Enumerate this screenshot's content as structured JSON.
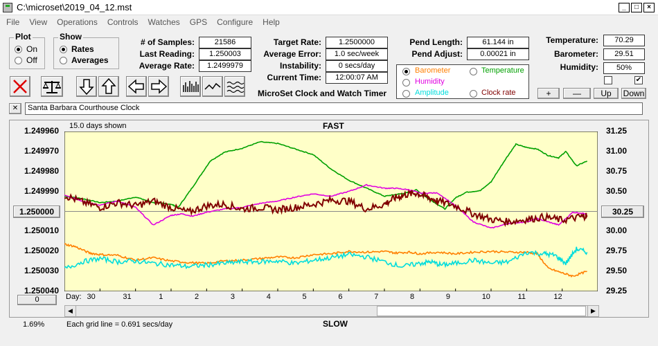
{
  "window": {
    "title": "C:\\microset\\2019_04_12.mst"
  },
  "menu": [
    "File",
    "View",
    "Operations",
    "Controls",
    "Watches",
    "GPS",
    "Configure",
    "Help"
  ],
  "plot": {
    "title": "Plot",
    "on": "On",
    "off": "Off",
    "selected": "On"
  },
  "show": {
    "title": "Show",
    "rates": "Rates",
    "averages": "Averages",
    "selected": "Rates"
  },
  "stats": {
    "samples_label": "# of Samples:",
    "samples": "21586",
    "last_label": "Last Reading:",
    "last": "1.250003",
    "avg_label": "Average Rate:",
    "avg": "1.2499979"
  },
  "rate": {
    "target_label": "Target Rate:",
    "target": "1.2500000",
    "error_label": "Average Error:",
    "error": "1.0 sec/week",
    "instab_label": "Instability:",
    "instab": "0 secs/day",
    "time_label": "Current Time:",
    "time": "12:00:07 AM"
  },
  "pend": {
    "length_label": "Pend Length:",
    "length": "61.144 in",
    "adjust_label": "Pend Adjust:",
    "adjust": "0.00021 in"
  },
  "env": {
    "temp_label": "Temperature:",
    "temp": "70.29",
    "baro_label": "Barometer:",
    "baro": "29.51",
    "hum_label": "Humidity:",
    "hum": "50%"
  },
  "sensor_select": {
    "barometer": "Barometer",
    "temperature": "Temperature",
    "humidity": "Humidity",
    "amplitude": "Amplitude",
    "clock_rate": "Clock rate",
    "selected": "barometer"
  },
  "adjust_buttons": {
    "plus": "+",
    "minus": "—",
    "up": "Up",
    "down": "Down"
  },
  "app_label": "MicroSet Clock and Watch Timer",
  "clock_name": "Santa Barbara Courthouse Clock",
  "close_x": "✕",
  "colors": {
    "barometer": "#ff7f00",
    "temperature": "#00a000",
    "humidity": "#e000e0",
    "amplitude": "#00dcdc",
    "rate": "#800000",
    "plot_bg": "#ffffc8"
  },
  "chart": {
    "days_shown": "15.0 days shown",
    "top_label": "FAST",
    "bottom_label": "SLOW",
    "grid_note": "Each grid line = 0.691 secs/day",
    "percent": "1.69%",
    "center_left_button": "1.250000",
    "center_right_button": "30.25",
    "bottom_left_button": "0",
    "day_label": "Day:"
  },
  "chart_data": {
    "type": "line",
    "left_axis": {
      "ticks": [
        "1.249960",
        "1.249970",
        "1.249980",
        "1.249990",
        "1.250000",
        "1.250010",
        "1.250020",
        "1.250030",
        "1.250040"
      ],
      "range": [
        1.24996,
        1.25004
      ]
    },
    "right_axis": {
      "ticks": [
        "31.25",
        "31.00",
        "30.75",
        "30.50",
        "30.25",
        "30.00",
        "29.75",
        "29.50",
        "29.25"
      ],
      "range": [
        29.25,
        31.25
      ]
    },
    "days": [
      "30",
      "31",
      "1",
      "2",
      "3",
      "4",
      "5",
      "6",
      "7",
      "8",
      "9",
      "10",
      "11",
      "12"
    ],
    "day_positions": [
      0.4,
      1.4,
      2.4,
      3.4,
      4.4,
      5.4,
      6.4,
      7.4,
      8.4,
      9.4,
      10.4,
      11.4,
      12.4,
      13.4
    ],
    "x_range": [
      0,
      15
    ],
    "series": [
      {
        "color": "temperature",
        "x": [
          0,
          0.5,
          1,
          1.5,
          2,
          2.5,
          3,
          3.2,
          3.6,
          4.1,
          4.5,
          5,
          5.5,
          6,
          6.5,
          7,
          7.5,
          8,
          8.5,
          9,
          9.3,
          9.6,
          9.9,
          10.2,
          10.7,
          11,
          11.3,
          11.7,
          12,
          12.4,
          12.7,
          13,
          13.3,
          13.6,
          13.9,
          14.1,
          14.4,
          14.7
        ],
        "y": [
          30.44,
          30.41,
          30.36,
          30.38,
          30.43,
          30.36,
          30.34,
          30.3,
          30.55,
          30.88,
          30.99,
          31.04,
          31.12,
          31.1,
          31.03,
          30.96,
          30.78,
          30.64,
          30.54,
          30.44,
          30.46,
          30.48,
          30.52,
          30.42,
          30.28,
          30.42,
          30.49,
          30.51,
          30.62,
          30.9,
          31.09,
          31.05,
          31.03,
          30.95,
          30.92,
          31.0,
          30.82,
          30.88
        ]
      },
      {
        "color": "humidity",
        "x": [
          0,
          0.5,
          1,
          1.5,
          2,
          2.5,
          3,
          3.3,
          3.6,
          4,
          4.5,
          5,
          5.5,
          6,
          6.5,
          7,
          7.5,
          8,
          8.5,
          9,
          9.3,
          9.7,
          10,
          10.5,
          11,
          11.5,
          12,
          12.5,
          13,
          13.3,
          13.6,
          13.9,
          14.3,
          14.7
        ],
        "y": [
          30.45,
          30.38,
          30.33,
          30.38,
          30.3,
          30.08,
          30.2,
          30.22,
          30.19,
          30.24,
          30.28,
          30.3,
          30.35,
          30.38,
          30.43,
          30.47,
          30.44,
          30.5,
          30.58,
          30.54,
          30.54,
          30.52,
          30.48,
          30.48,
          30.32,
          30.12,
          30.04,
          30.1,
          30.12,
          30.16,
          30.12,
          30.08,
          30.24,
          30.22
        ]
      },
      {
        "color": "rate",
        "x": [
          0,
          0.5,
          1,
          1.5,
          2,
          2.5,
          3,
          3.5,
          4,
          4.5,
          5,
          5.5,
          6,
          6.5,
          7,
          7.5,
          8,
          8.5,
          9,
          9.3,
          9.6,
          9.9,
          10.2,
          10.5,
          11,
          11.5,
          12,
          12.5,
          13,
          13.5,
          14,
          14.5,
          14.7
        ],
        "y": [
          30.45,
          30.37,
          30.3,
          30.36,
          30.32,
          30.38,
          30.3,
          30.24,
          30.32,
          30.34,
          30.28,
          30.3,
          30.27,
          30.3,
          30.34,
          30.39,
          30.38,
          30.28,
          30.34,
          30.42,
          30.46,
          30.48,
          30.43,
          30.38,
          30.32,
          30.22,
          30.15,
          30.12,
          30.15,
          30.18,
          30.14,
          30.18,
          30.2
        ]
      },
      {
        "color": "barometer",
        "x": [
          0,
          0.3,
          0.7,
          1,
          1.5,
          2,
          2.5,
          3,
          3.5,
          4,
          4.5,
          5,
          5.5,
          6,
          6.5,
          7,
          7.5,
          8,
          8.5,
          9,
          9.3,
          9.7,
          10,
          10.5,
          11,
          11.5,
          12,
          12.5,
          13,
          13.3,
          13.6,
          14,
          14.3,
          14.7
        ],
        "y": [
          29.84,
          29.81,
          29.73,
          29.71,
          29.7,
          29.64,
          29.67,
          29.63,
          29.61,
          29.6,
          29.63,
          29.64,
          29.66,
          29.68,
          29.67,
          29.71,
          29.72,
          29.75,
          29.74,
          29.75,
          29.73,
          29.74,
          29.72,
          29.74,
          29.72,
          29.74,
          29.75,
          29.74,
          29.74,
          29.72,
          29.54,
          29.48,
          29.44,
          29.5
        ]
      },
      {
        "color": "amplitude",
        "x": [
          0,
          0.5,
          1,
          1.5,
          2,
          2.5,
          3,
          3.5,
          4,
          4.5,
          5,
          5.5,
          6,
          6.5,
          7,
          7.5,
          8,
          8.5,
          9,
          9.5,
          10,
          10.3,
          10.6,
          11,
          11.5,
          12,
          12.5,
          13,
          13.5,
          13.8,
          14.1,
          14.4,
          14.7
        ],
        "y": [
          29.53,
          29.62,
          29.66,
          29.62,
          29.63,
          29.6,
          29.58,
          29.56,
          29.58,
          29.6,
          29.62,
          29.62,
          29.63,
          29.6,
          29.64,
          29.67,
          29.71,
          29.68,
          29.62,
          29.56,
          29.6,
          29.62,
          29.58,
          29.6,
          29.64,
          29.6,
          29.62,
          29.74,
          29.72,
          29.7,
          29.6,
          29.78,
          29.74
        ]
      }
    ]
  }
}
